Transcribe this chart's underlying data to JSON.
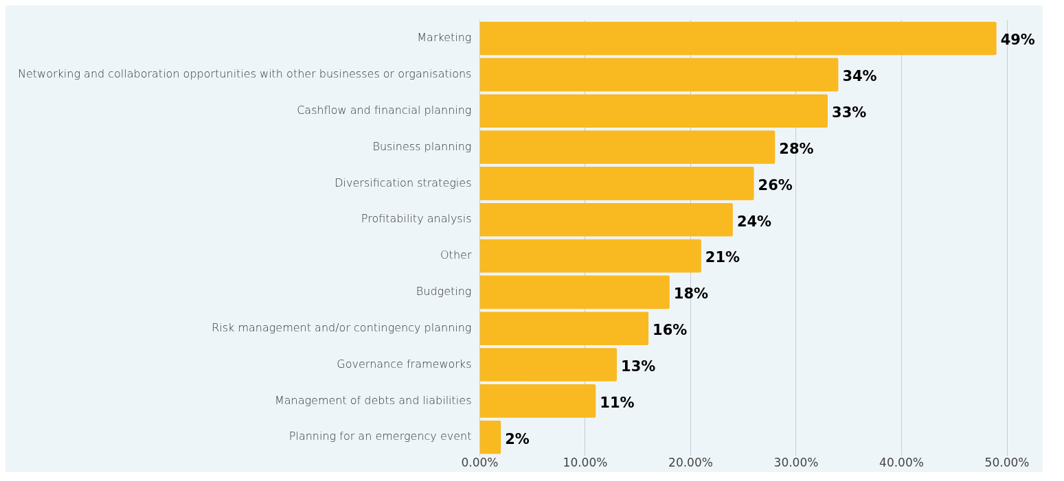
{
  "chart_data": {
    "type": "bar",
    "orientation": "horizontal",
    "categories": [
      "Marketing",
      "Networking and collaboration opportunities with other businesses or organisations",
      "Cashflow and financial planning",
      "Business planning",
      "Diversification strategies",
      "Profitability analysis",
      "Other",
      "Budgeting",
      "Risk management and/or contingency planning",
      "Governance frameworks",
      "Management of debts and liabilities",
      "Planning for an emergency event"
    ],
    "values": [
      49,
      34,
      33,
      28,
      26,
      24,
      21,
      18,
      16,
      13,
      11,
      2
    ],
    "value_labels": [
      "49%",
      "34%",
      "33%",
      "28%",
      "26%",
      "24%",
      "21%",
      "18%",
      "16%",
      "13%",
      "11%",
      "2%"
    ],
    "color": "#f9b920",
    "xlim": [
      0,
      50
    ],
    "xticks": [
      {
        "value": 0,
        "label": "0.00%"
      },
      {
        "value": 10,
        "label": "10.00%"
      },
      {
        "value": 20,
        "label": "20.00%"
      },
      {
        "value": 30,
        "label": "30.00%"
      },
      {
        "value": 40,
        "label": "40.00%"
      },
      {
        "value": 50,
        "label": "50.00%"
      }
    ],
    "grid": "x",
    "legend": false
  }
}
